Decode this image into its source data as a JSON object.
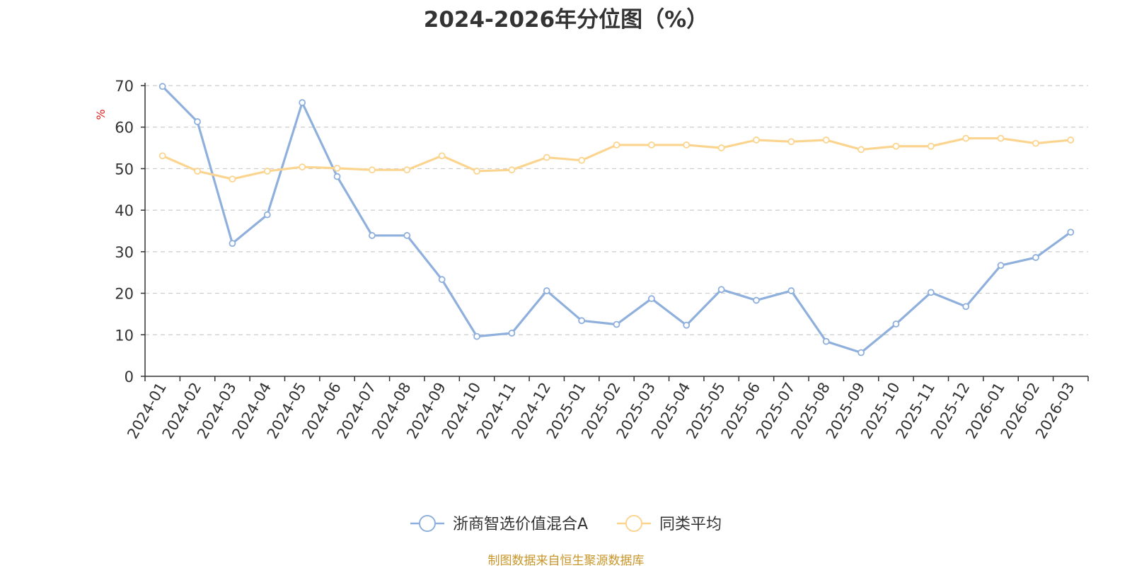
{
  "source_note": "制图数据来自恒生聚源数据库",
  "chart_data": {
    "type": "line",
    "title": "2024-2026年分位图（%）",
    "ylabel": "%",
    "xlabel": "",
    "ylim": [
      0,
      70
    ],
    "yticks": [
      0,
      10,
      20,
      30,
      40,
      50,
      60,
      70
    ],
    "grid": true,
    "legend": "bottom-center",
    "categories": [
      "2024-01",
      "2024-02",
      "2024-03",
      "2024-04",
      "2024-05",
      "2024-06",
      "2024-07",
      "2024-08",
      "2024-09",
      "2024-10",
      "2024-11",
      "2024-12",
      "2025-01",
      "2025-02",
      "2025-03",
      "2025-04",
      "2025-05",
      "2025-06",
      "2025-07",
      "2025-08",
      "2025-09",
      "2025-10",
      "2025-11",
      "2025-12",
      "2026-01",
      "2026-02",
      "2026-03"
    ],
    "series": [
      {
        "name": "浙商智选价值混合A",
        "color": "#8fb0dc",
        "values": [
          69.8,
          61.3,
          32.0,
          38.9,
          65.9,
          48.1,
          33.9,
          33.9,
          23.3,
          9.6,
          10.4,
          20.6,
          13.4,
          12.5,
          18.7,
          12.3,
          20.9,
          18.3,
          20.6,
          8.4,
          5.7,
          12.6,
          20.2,
          16.8,
          26.7,
          28.6,
          34.7
        ]
      },
      {
        "name": "同类平均",
        "color": "#fbd58f",
        "values": [
          53.1,
          49.4,
          47.5,
          49.4,
          50.4,
          50.1,
          49.7,
          49.7,
          53.1,
          49.4,
          49.7,
          52.7,
          52.0,
          55.7,
          55.7,
          55.7,
          55.0,
          56.9,
          56.5,
          56.9,
          54.6,
          55.4,
          55.4,
          57.3,
          57.3,
          56.1,
          56.9
        ]
      }
    ]
  }
}
